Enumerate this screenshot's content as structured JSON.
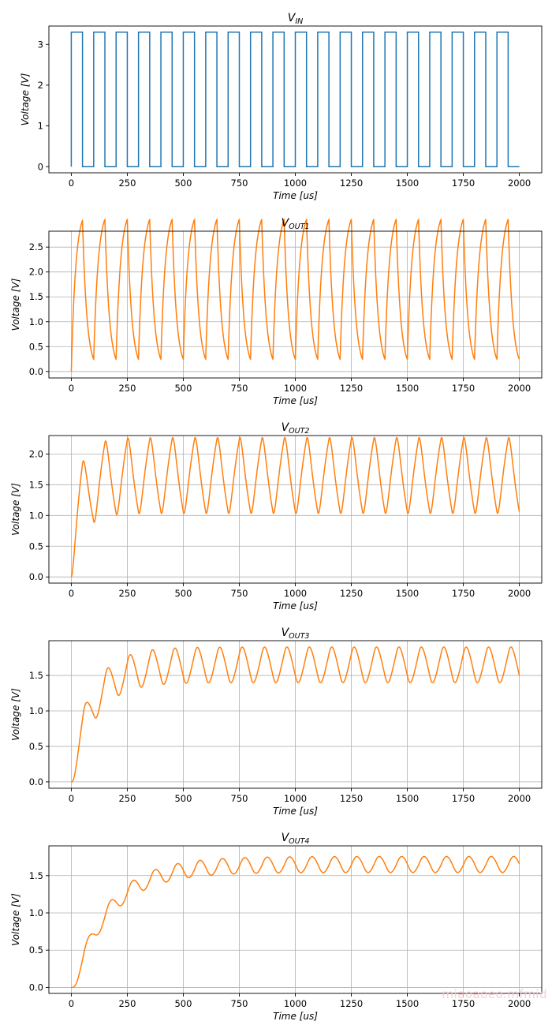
{
  "watermark": "miaoaoeo.mfmid",
  "chart_data": [
    {
      "type": "line",
      "title_main": "V",
      "title_sub": "IN",
      "xlabel": "Time [us]",
      "ylabel": "Voltage [V]",
      "xlim": [
        -100,
        2100
      ],
      "ylim": [
        -0.15,
        3.45
      ],
      "xticks": [
        0,
        250,
        500,
        750,
        1000,
        1250,
        1500,
        1750,
        2000
      ],
      "yticks": [
        0,
        1,
        2,
        3
      ],
      "ytick_labels": [
        "0",
        "1",
        "2",
        "3"
      ],
      "grid": false,
      "color": "#1f77b4",
      "series": [
        {
          "model": "square",
          "period_us": 100,
          "duty": 0.5,
          "high": 3.3,
          "low": 0,
          "x_start": 0,
          "x_end": 2000
        }
      ]
    },
    {
      "type": "line",
      "title_main": "V",
      "title_sub": "OUT1",
      "xlabel": "Time [us]",
      "ylabel": "Voltage [V]",
      "xlim": [
        -100,
        2100
      ],
      "ylim": [
        -0.13,
        2.82
      ],
      "xticks": [
        0,
        250,
        500,
        750,
        1000,
        1250,
        1500,
        1750,
        2000
      ],
      "yticks": [
        0,
        0.5,
        1.0,
        1.5,
        2.0,
        2.5
      ],
      "ytick_labels": [
        "0.0",
        "0.5",
        "1.0",
        "1.5",
        "2.0",
        "2.5"
      ],
      "grid": true,
      "color": "#ff7f0e",
      "series": [
        {
          "model": "rc_ladder",
          "stages": 1,
          "tau_us": 19.7,
          "period_us": 100,
          "high": 3.3,
          "x_start": 0,
          "x_end": 2000
        }
      ]
    },
    {
      "type": "line",
      "title_main": "V",
      "title_sub": "OUT2",
      "xlabel": "Time [us]",
      "ylabel": "Voltage [V]",
      "xlim": [
        -100,
        2100
      ],
      "ylim": [
        -0.1,
        2.3
      ],
      "xticks": [
        0,
        250,
        500,
        750,
        1000,
        1250,
        1500,
        1750,
        2000
      ],
      "yticks": [
        0,
        0.5,
        1.0,
        1.5,
        2.0
      ],
      "ytick_labels": [
        "0.0",
        "0.5",
        "1.0",
        "1.5",
        "2.0"
      ],
      "grid": true,
      "color": "#ff7f0e",
      "series": [
        {
          "model": "rc_ladder",
          "stages": 2,
          "tau_us": 19.7,
          "period_us": 100,
          "high": 3.3,
          "x_start": 0,
          "x_end": 2000
        }
      ]
    },
    {
      "type": "line",
      "title_main": "V",
      "title_sub": "OUT3",
      "xlabel": "Time [us]",
      "ylabel": "Voltage [V]",
      "xlim": [
        -100,
        2100
      ],
      "ylim": [
        -0.09,
        1.99
      ],
      "xticks": [
        0,
        250,
        500,
        750,
        1000,
        1250,
        1500,
        1750,
        2000
      ],
      "yticks": [
        0,
        0.5,
        1.0,
        1.5
      ],
      "ytick_labels": [
        "0.0",
        "0.5",
        "1.0",
        "1.5"
      ],
      "grid": true,
      "color": "#ff7f0e",
      "series": [
        {
          "model": "rc_ladder",
          "stages": 3,
          "tau_us": 19.7,
          "period_us": 100,
          "high": 3.3,
          "x_start": 0,
          "x_end": 2000
        }
      ]
    },
    {
      "type": "line",
      "title_main": "V",
      "title_sub": "OUT4",
      "xlabel": "Time [us]",
      "ylabel": "Voltage [V]",
      "xlim": [
        -100,
        2100
      ],
      "ylim": [
        -0.08,
        1.9
      ],
      "xticks": [
        0,
        250,
        500,
        750,
        1000,
        1250,
        1500,
        1750,
        2000
      ],
      "yticks": [
        0,
        0.5,
        1.0,
        1.5
      ],
      "ytick_labels": [
        "0.0",
        "0.5",
        "1.0",
        "1.5"
      ],
      "grid": true,
      "color": "#ff7f0e",
      "series": [
        {
          "model": "rc_ladder",
          "stages": 4,
          "tau_us": 19.7,
          "period_us": 100,
          "high": 3.3,
          "x_start": 0,
          "x_end": 2000
        }
      ]
    }
  ]
}
